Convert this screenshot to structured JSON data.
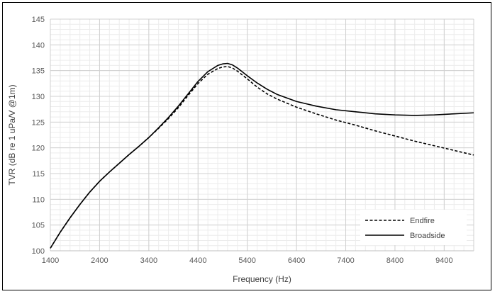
{
  "chart_data": {
    "type": "line",
    "title": "",
    "xlabel": "Frequency (Hz)",
    "ylabel": "TVR (dB re 1 uPa/V @1m)",
    "xlim": [
      1400,
      10000
    ],
    "ylim": [
      100,
      145
    ],
    "x_major_ticks": [
      1400,
      2400,
      3400,
      4400,
      5400,
      6400,
      7400,
      8400,
      9400
    ],
    "x_minor_step": 200,
    "y_major_ticks": [
      100,
      105,
      110,
      115,
      120,
      125,
      130,
      135,
      140,
      145
    ],
    "y_minor_step": 1,
    "grid": true,
    "legend_position": "bottom-right",
    "series": [
      {
        "name": "Endfire",
        "style": "dashed",
        "color": "#000000",
        "x": [
          1400,
          1600,
          1800,
          2000,
          2200,
          2400,
          2600,
          2800,
          3000,
          3200,
          3400,
          3600,
          3800,
          4000,
          4200,
          4400,
          4600,
          4800,
          4900,
          5000,
          5100,
          5200,
          5400,
          5600,
          5800,
          6000,
          6400,
          6800,
          7200,
          7600,
          8000,
          8400,
          8800,
          9200,
          9600,
          10000
        ],
        "y": [
          100.5,
          103.6,
          106.4,
          109.0,
          111.4,
          113.5,
          115.3,
          117.0,
          118.7,
          120.3,
          122.0,
          123.8,
          125.7,
          127.8,
          130.2,
          132.5,
          134.3,
          135.4,
          135.7,
          135.8,
          135.5,
          134.9,
          133.4,
          131.8,
          130.5,
          129.5,
          127.9,
          126.6,
          125.4,
          124.4,
          123.3,
          122.3,
          121.3,
          120.4,
          119.5,
          118.6
        ]
      },
      {
        "name": "Broadside",
        "style": "solid",
        "color": "#000000",
        "x": [
          1400,
          1600,
          1800,
          2000,
          2200,
          2400,
          2600,
          2800,
          3000,
          3200,
          3400,
          3600,
          3800,
          4000,
          4200,
          4400,
          4600,
          4800,
          4900,
          5000,
          5100,
          5200,
          5400,
          5600,
          5800,
          6000,
          6400,
          6800,
          7200,
          7600,
          8000,
          8400,
          8800,
          9200,
          9600,
          10000
        ],
        "y": [
          100.5,
          103.6,
          106.4,
          109.0,
          111.4,
          113.5,
          115.3,
          117.0,
          118.7,
          120.3,
          122.0,
          123.9,
          125.9,
          128.1,
          130.5,
          132.9,
          134.8,
          136.0,
          136.3,
          136.4,
          136.1,
          135.5,
          134.0,
          132.6,
          131.4,
          130.4,
          129.0,
          128.1,
          127.4,
          127.0,
          126.6,
          126.4,
          126.3,
          126.4,
          126.6,
          126.8
        ]
      }
    ]
  }
}
